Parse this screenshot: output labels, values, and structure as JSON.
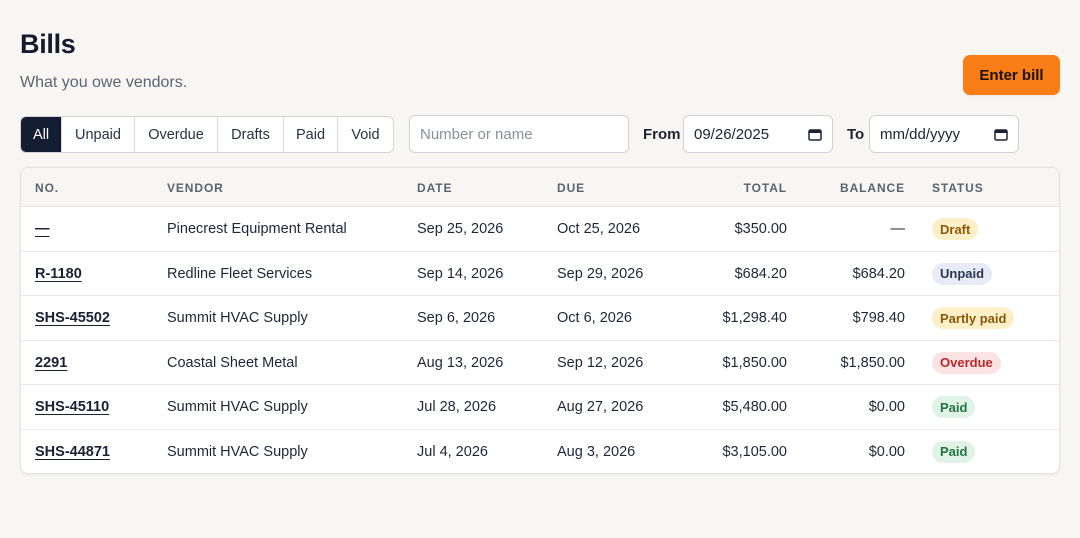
{
  "header": {
    "title": "Bills",
    "subtitle": "What you owe vendors.",
    "enter_bill_label": "Enter bill"
  },
  "filters": {
    "tabs": [
      "All",
      "Unpaid",
      "Overdue",
      "Drafts",
      "Paid",
      "Void"
    ],
    "active": "All",
    "search_placeholder": "Number or name",
    "from_label": "From",
    "from_value": "09/26/2025",
    "to_label": "To",
    "to_value": "mm/dd/yyyy"
  },
  "table": {
    "columns": [
      "NO.",
      "VENDOR",
      "DATE",
      "DUE",
      "TOTAL",
      "BALANCE",
      "STATUS"
    ],
    "rows": [
      {
        "no": "—",
        "vendor": "Pinecrest Equipment Rental",
        "date": "Sep 25, 2026",
        "due": "Oct 25, 2026",
        "total": "$350.00",
        "balance": "—",
        "status": "Draft",
        "status_kind": "draft"
      },
      {
        "no": "R-1180",
        "vendor": "Redline Fleet Services",
        "date": "Sep 14, 2026",
        "due": "Sep 29, 2026",
        "total": "$684.20",
        "balance": "$684.20",
        "status": "Unpaid",
        "status_kind": "unpaid"
      },
      {
        "no": "SHS-45502",
        "vendor": "Summit HVAC Supply",
        "date": "Sep 6, 2026",
        "due": "Oct 6, 2026",
        "total": "$1,298.40",
        "balance": "$798.40",
        "status": "Partly paid",
        "status_kind": "partly"
      },
      {
        "no": "2291",
        "vendor": "Coastal Sheet Metal",
        "date": "Aug 13, 2026",
        "due": "Sep 12, 2026",
        "total": "$1,850.00",
        "balance": "$1,850.00",
        "status": "Overdue",
        "status_kind": "overdue"
      },
      {
        "no": "SHS-45110",
        "vendor": "Summit HVAC Supply",
        "date": "Jul 28, 2026",
        "due": "Aug 27, 2026",
        "total": "$5,480.00",
        "balance": "$0.00",
        "status": "Paid",
        "status_kind": "paid"
      },
      {
        "no": "SHS-44871",
        "vendor": "Summit HVAC Supply",
        "date": "Jul 4, 2026",
        "due": "Aug 3, 2026",
        "total": "$3,105.00",
        "balance": "$0.00",
        "status": "Paid",
        "status_kind": "paid"
      }
    ]
  },
  "colors": {
    "accent": "#f97d16",
    "active_tab": "#151d33",
    "status": {
      "draft": {
        "bg": "#fdefc7",
        "fg": "#8a5a08"
      },
      "unpaid": {
        "bg": "#e6ebf5",
        "fg": "#2c3954"
      },
      "partly": {
        "bg": "#fdefc7",
        "fg": "#8a5a08"
      },
      "overdue": {
        "bg": "#fbe3e3",
        "fg": "#b42b2b"
      },
      "paid": {
        "bg": "#e1f2e6",
        "fg": "#23753f"
      }
    }
  },
  "icons": {
    "date_picker": "calendar-icon"
  }
}
